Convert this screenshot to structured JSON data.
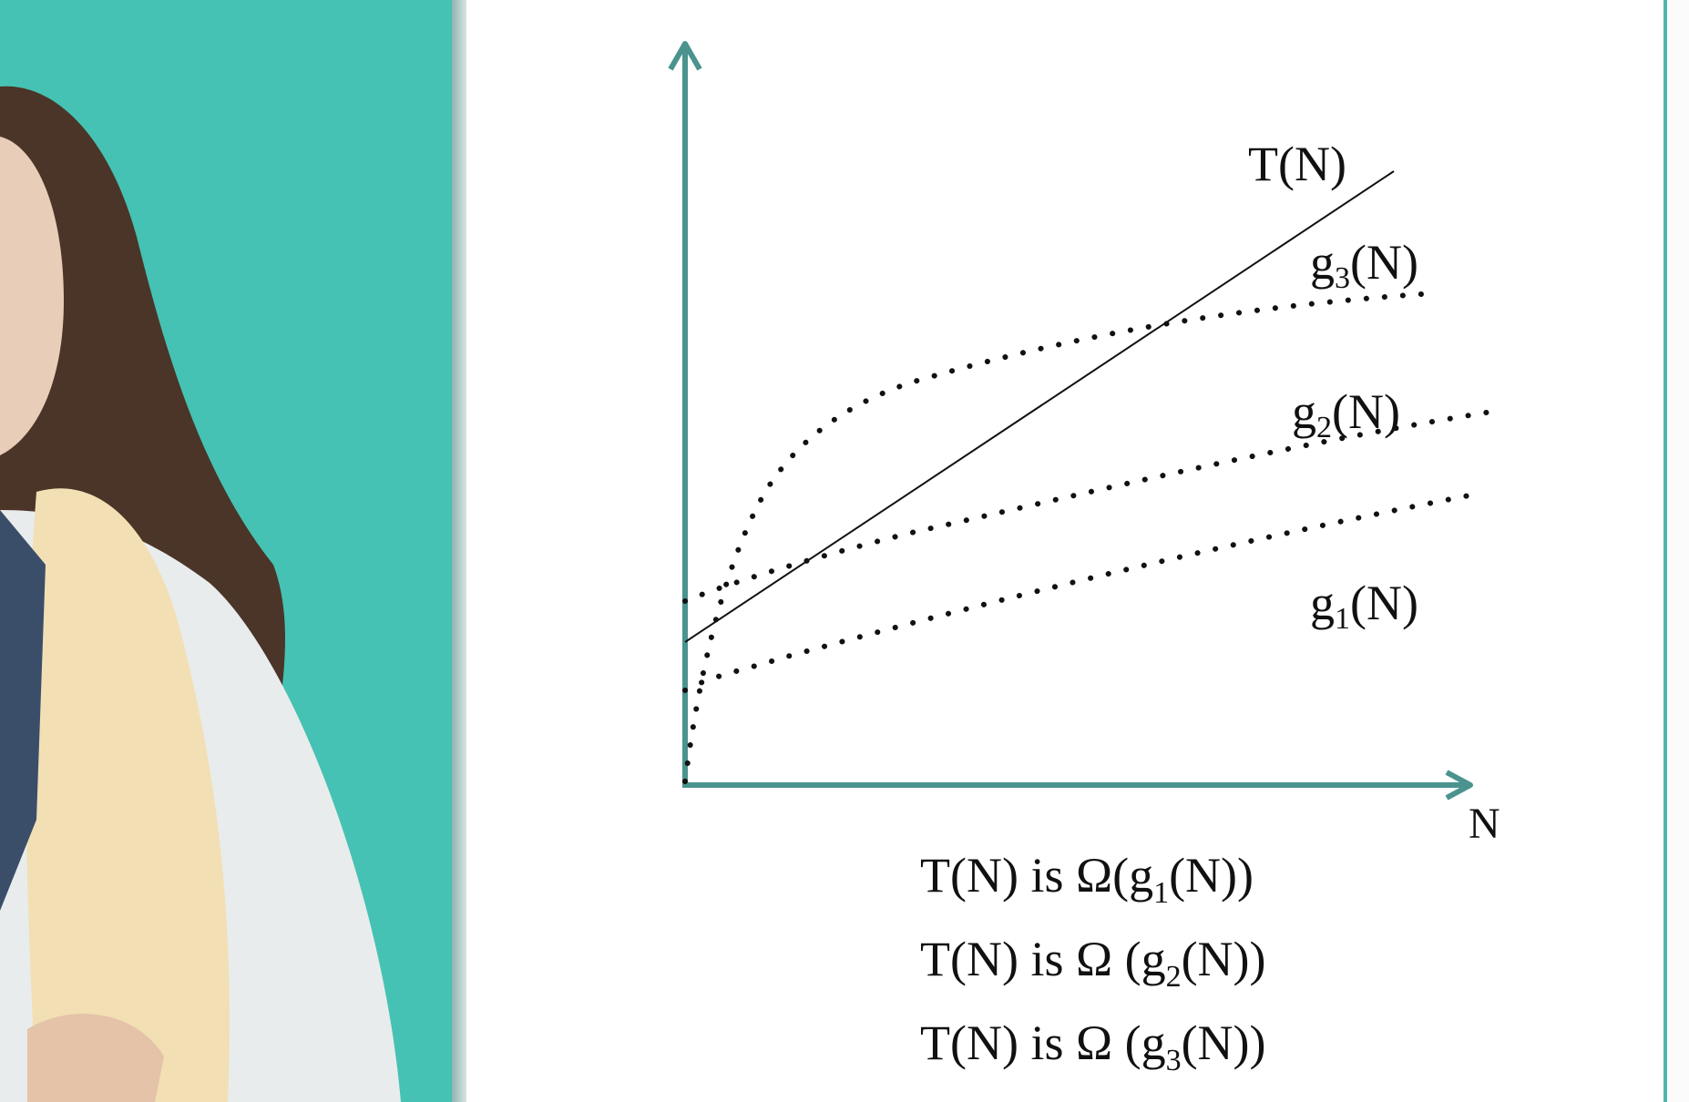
{
  "slide": {
    "curve_labels": {
      "t": "T(N)",
      "g3": {
        "base": "g",
        "sub": "3",
        "suffix": "(N)"
      },
      "g2": {
        "base": "g",
        "sub": "2",
        "suffix": "(N)"
      },
      "g1": {
        "base": "g",
        "sub": "1",
        "suffix": "(N)"
      }
    },
    "x_axis_label": "N",
    "statements": [
      {
        "prefix": "T(N) is Ω(g",
        "sub": "1",
        "suffix": "(N))"
      },
      {
        "prefix": "T(N) is Ω (g",
        "sub": "2",
        "suffix": "(N))"
      },
      {
        "prefix": "T(N) is Ω (g",
        "sub": "3",
        "suffix": "(N))"
      }
    ]
  },
  "colors": {
    "teal_background": "#45c2b3",
    "axis": "#4a938e",
    "curve": "#111111"
  }
}
